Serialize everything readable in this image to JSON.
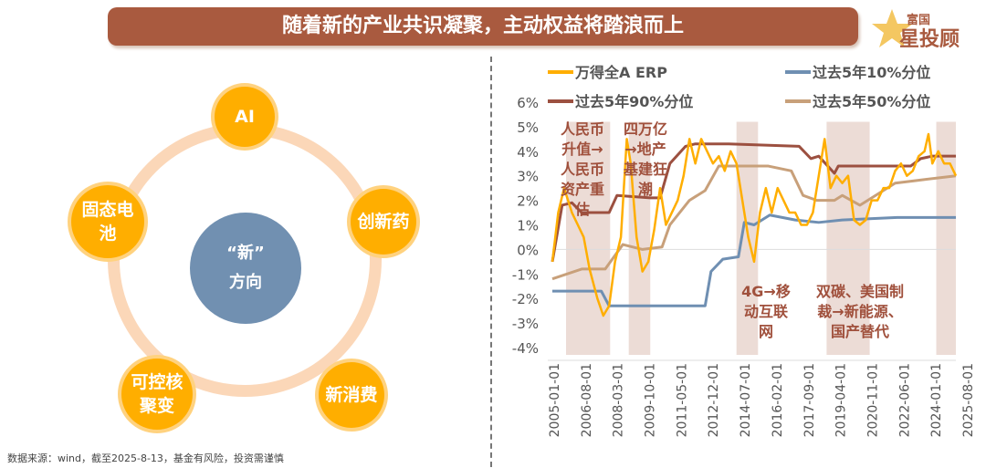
{
  "header": {
    "title": "随着新的产业共识凝聚，主动权益将踏浪而上",
    "logo_text": "富国星投顾"
  },
  "diagram": {
    "center": {
      "line1": "“新”",
      "line2": "方向"
    },
    "nodes": [
      {
        "label": "AI"
      },
      {
        "label": "创新药"
      },
      {
        "label": "新消费"
      },
      {
        "label": "可控核聚变"
      },
      {
        "label": "固态电池"
      }
    ]
  },
  "source": "数据来源：wind，截至2025-8-13，基金有风险，投资需谨慎",
  "colors": {
    "erp": "#ffae00",
    "p10": "#6f8fb2",
    "p90": "#9c5040",
    "p50": "#c8a07a",
    "shade": "#ecdcd6",
    "banner": "#a95a3f"
  },
  "chart_data": {
    "type": "line",
    "ylim": [
      -4,
      6
    ],
    "yticks": [
      "-4%",
      "-3%",
      "-2%",
      "-1%",
      "0%",
      "1%",
      "2%",
      "3%",
      "4%",
      "5%",
      "6%"
    ],
    "xlim": [
      2005.0,
      2025.6
    ],
    "xticks": [
      "2005-01-01",
      "2006-08-01",
      "2008-03-01",
      "2009-10-01",
      "2011-05-01",
      "2012-12-01",
      "2014-07-01",
      "2016-02-01",
      "2017-09-01",
      "2019-04-01",
      "2020-11-01",
      "2022-06-01",
      "2024-01-01",
      "2025-08-01"
    ],
    "legend": "top",
    "series": [
      {
        "name": "万得全A ERP",
        "x": [
          2005.0,
          2005.3,
          2005.6,
          2006.0,
          2006.3,
          2006.6,
          2006.9,
          2007.3,
          2007.6,
          2007.9,
          2008.2,
          2008.5,
          2008.8,
          2009.0,
          2009.3,
          2009.6,
          2009.9,
          2010.2,
          2010.5,
          2010.8,
          2011.1,
          2011.4,
          2011.7,
          2012.0,
          2012.3,
          2012.6,
          2012.9,
          2013.2,
          2013.5,
          2013.8,
          2014.1,
          2014.4,
          2014.7,
          2015.0,
          2015.3,
          2015.6,
          2015.9,
          2016.2,
          2016.5,
          2016.8,
          2017.1,
          2017.4,
          2017.7,
          2018.0,
          2018.3,
          2018.6,
          2018.9,
          2019.2,
          2019.5,
          2019.8,
          2020.1,
          2020.4,
          2020.7,
          2021.0,
          2021.3,
          2021.6,
          2021.9,
          2022.2,
          2022.5,
          2022.8,
          2023.1,
          2023.4,
          2023.7,
          2024.0,
          2024.2,
          2024.4,
          2024.7,
          2025.0,
          2025.3,
          2025.6
        ],
        "y": [
          -0.5,
          1.5,
          2.5,
          1.5,
          1.0,
          0.5,
          -0.8,
          -2.0,
          -2.7,
          -2.3,
          -0.5,
          0.5,
          4.5,
          3.5,
          0.5,
          -0.9,
          -0.5,
          0.8,
          2.5,
          1.0,
          1.5,
          2.0,
          3.0,
          4.5,
          3.5,
          4.5,
          4.0,
          3.5,
          3.8,
          3.2,
          4.0,
          3.5,
          2.0,
          0.5,
          -0.5,
          1.5,
          2.5,
          1.5,
          2.5,
          2.0,
          1.5,
          1.5,
          1.0,
          1.0,
          1.5,
          3.0,
          4.5,
          2.5,
          3.0,
          2.7,
          3.0,
          1.2,
          1.0,
          1.2,
          2.0,
          2.0,
          2.5,
          2.5,
          3.2,
          3.5,
          3.0,
          3.2,
          3.8,
          4.0,
          4.7,
          3.5,
          4.0,
          3.5,
          3.5,
          3.0
        ]
      },
      {
        "name": "过去5年10%分位",
        "x": [
          2005.0,
          2007.5,
          2007.9,
          2012.8,
          2013.1,
          2013.7,
          2014.5,
          2014.8,
          2015.3,
          2016.1,
          2017.4,
          2018.6,
          2019.8,
          2022.6,
          2025.6
        ],
        "y": [
          -1.7,
          -1.7,
          -2.3,
          -2.3,
          -0.9,
          -0.4,
          -0.3,
          1.1,
          1.0,
          1.4,
          1.2,
          1.1,
          1.2,
          1.3,
          1.3
        ]
      },
      {
        "name": "过去5年90%分位",
        "x": [
          2005.0,
          2005.5,
          2006.0,
          2006.5,
          2007.9,
          2008.3,
          2010.0,
          2010.5,
          2011.0,
          2011.8,
          2012.3,
          2014.0,
          2017.6,
          2018.2,
          2018.6,
          2019.4,
          2019.6,
          2023.3,
          2023.8,
          2024.4,
          2025.6
        ],
        "y": [
          -0.5,
          1.8,
          1.9,
          1.5,
          1.5,
          2.2,
          2.1,
          2.1,
          3.5,
          4.2,
          4.3,
          4.3,
          4.2,
          3.7,
          3.8,
          3.1,
          3.4,
          3.4,
          3.7,
          3.8,
          3.8
        ]
      },
      {
        "name": "过去5年50%分位",
        "x": [
          2005.0,
          2006.5,
          2007.7,
          2008.6,
          2009.6,
          2010.6,
          2011.0,
          2012.0,
          2012.8,
          2013.5,
          2016.0,
          2017.2,
          2017.8,
          2018.5,
          2019.4,
          2019.8,
          2020.7,
          2021.5,
          2022.5,
          2023.5,
          2025.6
        ],
        "y": [
          -1.2,
          -0.8,
          -0.8,
          0.2,
          0.0,
          0.1,
          1.0,
          2.0,
          2.4,
          3.4,
          3.4,
          3.2,
          2.2,
          2.0,
          2.0,
          2.2,
          1.8,
          2.2,
          2.7,
          2.8,
          3.0
        ]
      }
    ],
    "shaded_periods": [
      [
        2005.7,
        2007.95
      ],
      [
        2008.9,
        2010.0
      ],
      [
        2014.4,
        2015.5
      ],
      [
        2019.0,
        2021.2
      ],
      [
        2024.6,
        2025.6
      ]
    ],
    "annotations": [
      {
        "lines": [
          "人民币",
          "升值→",
          "人民币",
          "资产重",
          "估"
        ]
      },
      {
        "lines": [
          "四万亿",
          "→地产",
          "基建狂",
          "潮"
        ]
      },
      {
        "lines": [
          "4G→移",
          "动互联",
          "网"
        ]
      },
      {
        "lines": [
          "双碳、美国制",
          "裁→新能源、",
          "国产替代"
        ]
      }
    ]
  }
}
